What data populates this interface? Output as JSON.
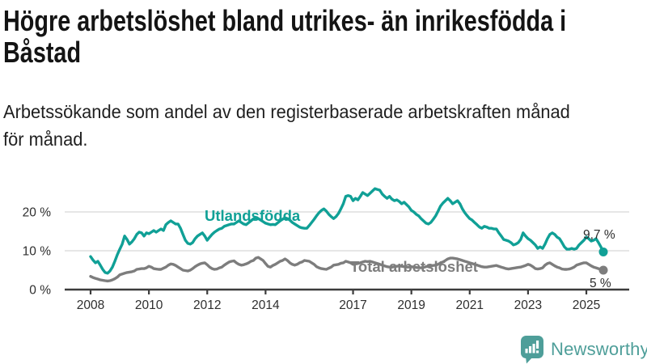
{
  "title": "Högre arbetslöshet bland utrikes- än inrikesfödda i Båstad",
  "title_lines": [
    "Högre arbetslöshet bland utrikes- än inrikesfödda i",
    "Båstad"
  ],
  "subtitle": "Arbetssökande som andel av den registerbaserade arbetskraften månad för månad.",
  "subtitle_lines": [
    "Arbetssökande som andel av den registerbaserade arbetskraften månad",
    "för månad."
  ],
  "brand": {
    "name": "Newsworthy",
    "color": "#4E9E99",
    "icon": "bar-chart-speech-bubble-icon"
  },
  "colors": {
    "foreign_born_line": "#10A096",
    "total_line": "#7D7D7D",
    "axis": "#3C3C3C",
    "tick_label": "#2E2E2E",
    "gridline": "#DEDEDE",
    "annotation": "#2B2B2B"
  },
  "chart_data": {
    "type": "line",
    "title": "Högre arbetslöshet bland utrikes- än inrikesfödda i Båstad",
    "subtitle": "Arbetssökande som andel av den registerbaserade arbetskraften månad för månad.",
    "x_unit": "month",
    "x_start": "2008-01",
    "x_end": "2025-08",
    "x_tick_labels": [
      "2008",
      "2010",
      "2012",
      "2014",
      "2017",
      "2019",
      "2021",
      "2023",
      "2025"
    ],
    "y_ticks": [
      {
        "value": 0,
        "label": "0 %"
      },
      {
        "value": 10,
        "label": "10 %"
      },
      {
        "value": 20,
        "label": "20 %"
      }
    ],
    "ylim": [
      0,
      27.5
    ],
    "grid": "horizontal",
    "legend_position": "inline-labels",
    "series": [
      {
        "name": "Utlandsfödda",
        "color": "#10A096",
        "end_label": "9,7 %",
        "end_value": 9.7,
        "values": [
          8.5,
          7.6,
          6.9,
          7.3,
          6.3,
          5.2,
          4.4,
          4.2,
          4.8,
          5.8,
          7.3,
          9.0,
          10.4,
          11.7,
          13.8,
          12.9,
          11.7,
          12.3,
          13.1,
          14.2,
          14.8,
          14.6,
          13.8,
          14.6,
          14.4,
          14.8,
          15.2,
          14.8,
          15.2,
          15.6,
          15.2,
          16.7,
          17.3,
          17.7,
          17.3,
          16.9,
          16.9,
          15.8,
          14.2,
          12.7,
          11.9,
          11.7,
          12.1,
          13.1,
          13.8,
          14.2,
          14.6,
          13.8,
          12.7,
          13.5,
          14.2,
          14.8,
          15.2,
          15.6,
          15.8,
          16.3,
          16.5,
          16.7,
          16.9,
          16.9,
          17.3,
          17.7,
          17.3,
          16.9,
          16.7,
          17.2,
          17.7,
          18.2,
          18.5,
          18.3,
          17.9,
          17.5,
          17.1,
          16.9,
          16.7,
          16.8,
          16.7,
          17.2,
          17.7,
          18.1,
          18.5,
          18.3,
          17.9,
          17.3,
          16.9,
          16.5,
          16.1,
          15.9,
          15.8,
          15.8,
          16.5,
          17.3,
          18.1,
          19.0,
          19.8,
          20.4,
          20.8,
          20.2,
          19.4,
          18.8,
          18.3,
          18.8,
          19.6,
          20.8,
          22.1,
          24.0,
          24.2,
          24.0,
          22.9,
          23.5,
          23.1,
          24.0,
          25.0,
          24.6,
          24.2,
          24.8,
          25.4,
          26.0,
          25.8,
          25.6,
          24.6,
          24.0,
          23.5,
          24.0,
          23.3,
          22.9,
          23.1,
          22.7,
          22.1,
          22.5,
          21.9,
          21.3,
          20.4,
          20.0,
          19.4,
          19.0,
          18.3,
          17.7,
          17.1,
          16.9,
          17.3,
          18.1,
          19.0,
          20.2,
          21.5,
          22.3,
          22.9,
          23.5,
          22.9,
          22.1,
          22.5,
          22.9,
          22.1,
          20.8,
          19.8,
          19.0,
          18.3,
          17.9,
          17.3,
          16.7,
          16.1,
          15.8,
          16.3,
          16.1,
          15.8,
          15.8,
          15.6,
          15.6,
          14.6,
          13.8,
          12.9,
          12.7,
          12.5,
          12.1,
          11.5,
          11.7,
          12.1,
          12.9,
          14.6,
          13.8,
          13.1,
          12.7,
          12.1,
          11.5,
          10.6,
          11.0,
          10.6,
          11.7,
          13.1,
          14.2,
          14.6,
          14.2,
          13.5,
          13.1,
          12.1,
          11.0,
          10.4,
          10.4,
          10.6,
          10.4,
          10.6,
          11.5,
          12.1,
          12.7,
          13.5,
          13.1,
          12.5,
          12.7,
          13.1,
          12.1,
          11.0,
          9.7
        ]
      },
      {
        "name": "Total arbetslöshet",
        "color": "#7D7D7D",
        "end_label": "5 %",
        "end_value": 5.0,
        "values": [
          3.4,
          3.1,
          2.9,
          2.7,
          2.5,
          2.4,
          2.3,
          2.2,
          2.3,
          2.5,
          2.8,
          3.2,
          3.8,
          4.0,
          4.2,
          4.4,
          4.5,
          4.6,
          4.8,
          5.2,
          5.3,
          5.4,
          5.4,
          5.6,
          6.0,
          5.8,
          5.4,
          5.3,
          5.2,
          5.2,
          5.5,
          5.8,
          6.3,
          6.6,
          6.5,
          6.2,
          5.8,
          5.4,
          5.0,
          4.9,
          4.8,
          5.0,
          5.4,
          5.9,
          6.3,
          6.6,
          6.8,
          6.9,
          6.4,
          5.8,
          5.4,
          5.2,
          5.3,
          5.6,
          5.8,
          6.3,
          6.7,
          7.1,
          7.3,
          7.4,
          6.9,
          6.5,
          6.3,
          6.4,
          6.6,
          6.9,
          7.3,
          7.5,
          8.1,
          8.3,
          7.9,
          7.5,
          6.7,
          6.0,
          5.8,
          6.2,
          6.5,
          6.9,
          7.3,
          7.5,
          7.9,
          7.5,
          6.9,
          6.5,
          6.3,
          6.5,
          6.9,
          7.1,
          7.5,
          7.4,
          7.3,
          6.9,
          6.5,
          5.9,
          5.6,
          5.4,
          5.3,
          5.2,
          5.5,
          5.8,
          6.3,
          6.4,
          6.5,
          6.8,
          6.9,
          7.3,
          7.1,
          6.9,
          6.5,
          6.6,
          6.7,
          6.9,
          7.1,
          7.3,
          7.2,
          7.3,
          7.1,
          6.9,
          6.7,
          6.5,
          6.3,
          6.1,
          5.9,
          5.8,
          5.8,
          5.9,
          6.0,
          6.1,
          6.0,
          5.9,
          5.8,
          5.8,
          5.9,
          5.8,
          5.7,
          5.6,
          5.6,
          5.7,
          5.9,
          6.0,
          6.1,
          6.2,
          6.3,
          6.5,
          6.9,
          7.1,
          7.5,
          7.9,
          8.1,
          8.1,
          8.0,
          7.9,
          7.7,
          7.5,
          7.3,
          7.1,
          6.9,
          6.7,
          6.5,
          6.3,
          6.1,
          5.9,
          5.8,
          5.8,
          5.9,
          6.0,
          6.1,
          6.2,
          6.0,
          5.8,
          5.6,
          5.4,
          5.3,
          5.4,
          5.5,
          5.6,
          5.7,
          5.8,
          6.0,
          6.2,
          6.5,
          6.3,
          5.9,
          5.4,
          5.3,
          5.4,
          5.6,
          6.3,
          6.7,
          6.9,
          6.5,
          6.1,
          5.8,
          5.6,
          5.3,
          5.2,
          5.2,
          5.3,
          5.5,
          5.8,
          6.3,
          6.5,
          6.7,
          6.9,
          6.9,
          6.5,
          6.1,
          5.8,
          5.6,
          5.4,
          5.2,
          5.0
        ]
      }
    ]
  }
}
